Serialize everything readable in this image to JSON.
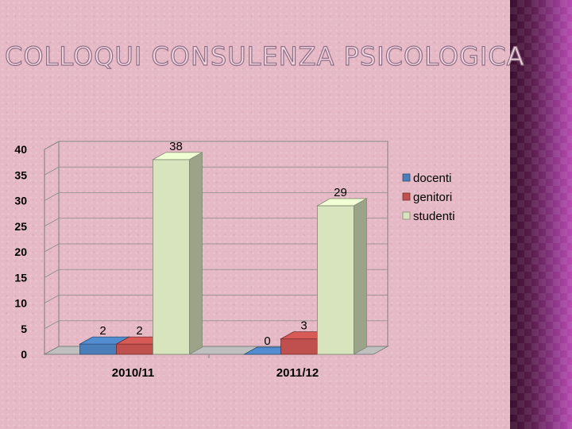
{
  "slide": {
    "title": "COLLOQUI CONSULENZA PSICOLOGICA"
  },
  "chart_data": {
    "type": "bar",
    "categories": [
      "2010/11",
      "2011/12"
    ],
    "series": [
      {
        "name": "docenti",
        "values": [
          2,
          0
        ],
        "color": "#4a7ebb"
      },
      {
        "name": "genitori",
        "values": [
          2,
          3
        ],
        "color": "#c0504d"
      },
      {
        "name": "studenti",
        "values": [
          38,
          29
        ],
        "color": "#d7e4bd"
      }
    ],
    "ylim": [
      0,
      40
    ],
    "yticks": [
      "0",
      "5",
      "10",
      "15",
      "20",
      "25",
      "30",
      "35",
      "40"
    ],
    "grid": true,
    "legend": "right",
    "style": "3d-columns",
    "data_labels": true
  }
}
